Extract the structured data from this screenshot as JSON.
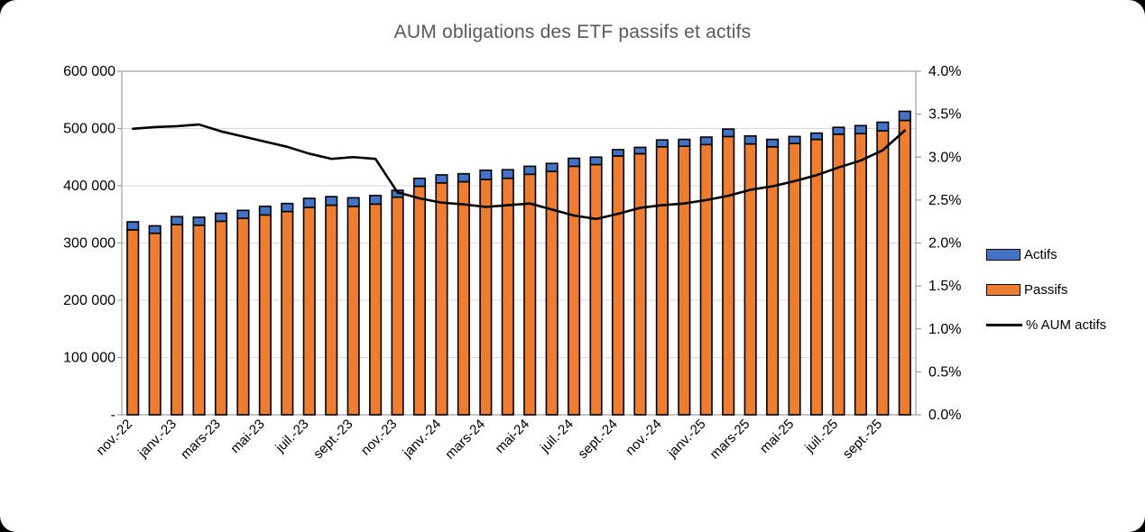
{
  "title": "AUM obligations des ETF passifs et actifs",
  "legend": [
    {
      "label": "Actifs",
      "swatch": "box",
      "color": "#4472C4"
    },
    {
      "label": "Passifs",
      "swatch": "box",
      "color": "#ED7D31"
    },
    {
      "label": "% AUM actifs",
      "swatch": "line",
      "color": "#000000"
    }
  ],
  "colors": {
    "actifs": "#4472C4",
    "passifs": "#ED7D31",
    "pct_line": "#000000",
    "gridline": "#D9D9D9",
    "axis_line": "#9E9E9E",
    "title_text": "#595959",
    "tick_text": "#000000",
    "card_background": "#FFFFFF",
    "page_background": "#000000"
  },
  "chart_data": {
    "type": "bar",
    "subtype": "stacked-bars-with-line",
    "title": "AUM obligations des ETF passifs et actifs",
    "xlabel": "",
    "ylabel_left": "",
    "ylabel_right": "",
    "grid": true,
    "legend_position": "right",
    "categories": [
      "nov.-22",
      "déc.-22",
      "janv.-23",
      "févr.-23",
      "mars-23",
      "avr.-23",
      "mai-23",
      "juin-23",
      "juil.-23",
      "août-23",
      "sept.-23",
      "oct.-23",
      "nov.-23",
      "déc.-23",
      "janv.-24",
      "févr.-24",
      "mars-24",
      "avr.-24",
      "mai-24",
      "juin-24",
      "juil.-24",
      "août-24",
      "sept.-24",
      "oct.-24",
      "nov.-24",
      "déc.-24",
      "janv.-25",
      "févr.-25",
      "mars-25",
      "avr.-25",
      "mai-25",
      "juin-25",
      "juil.-25",
      "août-25",
      "sept.-25",
      "oct.-25"
    ],
    "x_tick_labels_shown": [
      "nov.-22",
      "janv.-23",
      "mars-23",
      "mai-23",
      "juil.-23",
      "sept.-23",
      "nov.-23",
      "janv.-24",
      "mars-24",
      "mai-24",
      "juil.-24",
      "sept.-24",
      "nov.-24",
      "janv.-25",
      "mars-25",
      "mai-25",
      "juil.-25",
      "sept.-25"
    ],
    "x_tick_step": 2,
    "series": [
      {
        "name": "Passifs",
        "type": "bar",
        "stack": "aum",
        "axis": "left",
        "color": "#ED7D31",
        "values": [
          323000,
          317000,
          332000,
          331000,
          338000,
          343000,
          349000,
          355000,
          362000,
          366000,
          364000,
          368000,
          380000,
          399000,
          405000,
          407000,
          411000,
          413000,
          420000,
          425000,
          434000,
          437000,
          452000,
          456000,
          468000,
          469000,
          472000,
          486000,
          473000,
          468000,
          474000,
          481000,
          490000,
          491000,
          496000,
          514000
        ]
      },
      {
        "name": "Actifs",
        "type": "bar",
        "stack": "aum",
        "axis": "left",
        "color": "#4472C4",
        "values": [
          14000,
          13000,
          14000,
          14000,
          14000,
          14000,
          15000,
          14000,
          16000,
          15000,
          15000,
          15000,
          12000,
          14000,
          14000,
          14000,
          16000,
          15000,
          14000,
          14000,
          14000,
          13000,
          11000,
          11000,
          12000,
          12000,
          13000,
          13000,
          14000,
          13000,
          12000,
          11000,
          12000,
          14000,
          15000,
          16000
        ]
      },
      {
        "name": "% AUM actifs",
        "type": "line",
        "axis": "right",
        "color": "#000000",
        "values": [
          3.33,
          3.35,
          3.36,
          3.38,
          3.3,
          3.24,
          3.18,
          3.12,
          3.04,
          2.98,
          3.0,
          2.98,
          2.59,
          2.52,
          2.47,
          2.45,
          2.42,
          2.44,
          2.46,
          2.39,
          2.32,
          2.28,
          2.34,
          2.41,
          2.44,
          2.46,
          2.5,
          2.55,
          2.62,
          2.66,
          2.72,
          2.79,
          2.88,
          2.96,
          3.08,
          3.31
        ]
      }
    ],
    "left_axis": {
      "min": 0,
      "max": 600000,
      "step": 100000,
      "tick_labels": [
        "-",
        "100 000",
        "200 000",
        "300 000",
        "400 000",
        "500 000",
        "600 000"
      ]
    },
    "right_axis": {
      "min": 0,
      "max": 4.0,
      "step": 0.5,
      "tick_labels": [
        "0.0%",
        "0.5%",
        "1.0%",
        "1.5%",
        "2.0%",
        "2.5%",
        "3.0%",
        "3.5%",
        "4.0%"
      ]
    }
  }
}
